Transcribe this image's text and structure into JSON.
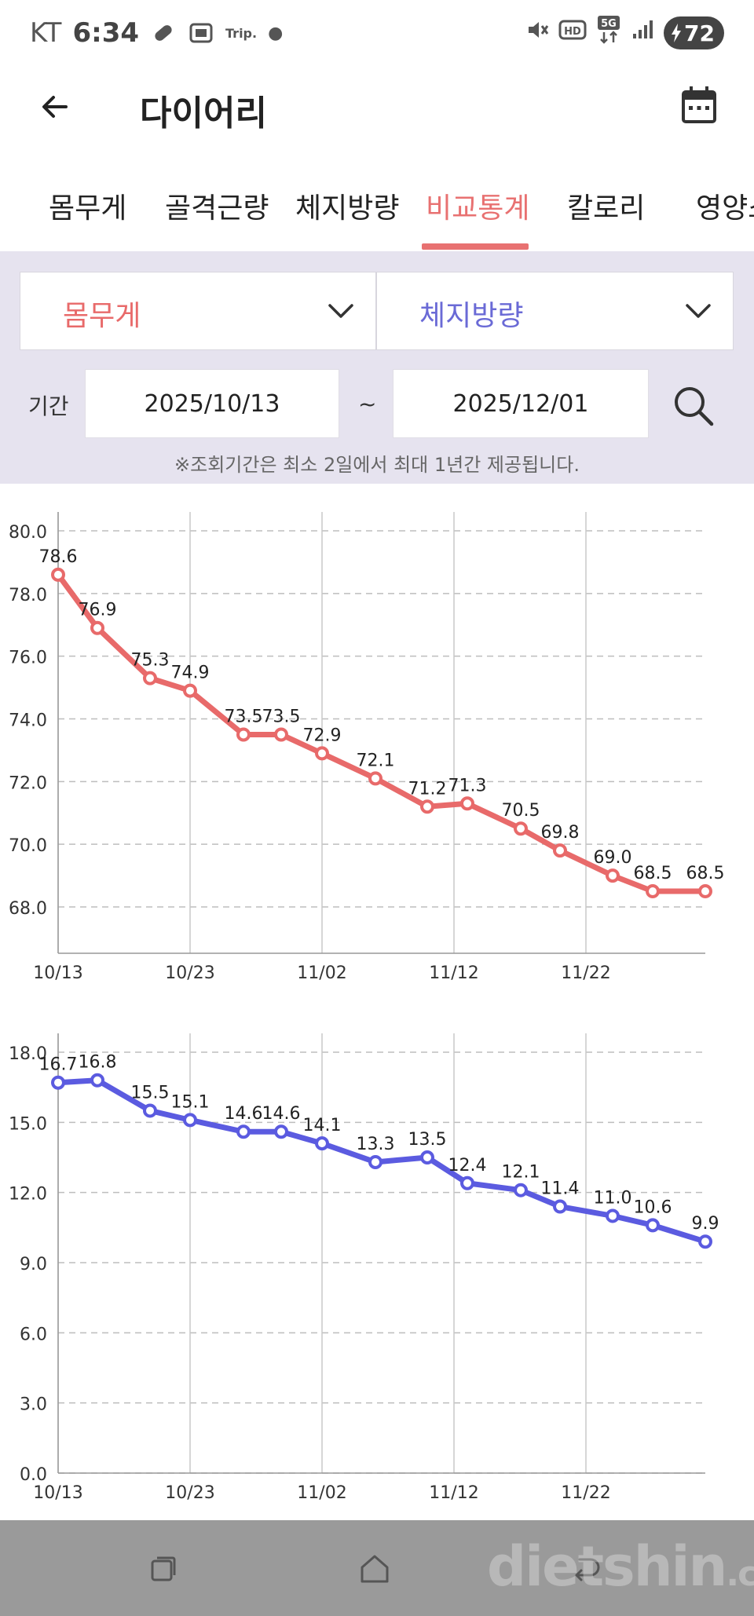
{
  "status_bar": {
    "carrier": "KT",
    "time": "6:34",
    "trip_label": "Trip.",
    "network_label": "5G",
    "hd_label": "HD",
    "battery": "72",
    "icons": [
      "pill-icon",
      "image-cast-icon",
      "trip-icon",
      "dot-icon",
      "mute-icon",
      "hd-icon",
      "5g-data-icon",
      "signal-icon",
      "battery-charging-icon"
    ]
  },
  "header": {
    "title": "다이어리",
    "back_icon": "arrow-left-icon",
    "calendar_icon": "calendar-icon"
  },
  "tabs": [
    {
      "label": "몸무게",
      "active": false
    },
    {
      "label": "골격근량",
      "active": false
    },
    {
      "label": "체지방량",
      "active": false
    },
    {
      "label": "비교통계",
      "active": true
    },
    {
      "label": "칼로리",
      "active": false
    },
    {
      "label": "영양소",
      "active": false
    }
  ],
  "filter": {
    "primary_select": {
      "value": "몸무게"
    },
    "secondary_select": {
      "value": "체지방량"
    },
    "period_label": "기간",
    "start_date": "2025/10/13",
    "separator": "~",
    "end_date": "2025/12/01",
    "notice": "※조회기간은 최소 2일에서 최대 1년간 제공됩니다."
  },
  "colors": {
    "accent_red": "#e86a6a",
    "accent_blue": "#5b5be0",
    "tab_active": "#e87171",
    "panel_bg": "#e6e3ef"
  },
  "chart_data": [
    {
      "type": "line",
      "series_color": "#e86a6a",
      "x": [
        "10/13",
        "10/16",
        "10/20",
        "10/23",
        "10/27",
        "10/30",
        "11/02",
        "11/06",
        "11/10",
        "11/13",
        "11/18",
        "11/21",
        "11/25",
        "11/28",
        "12/01"
      ],
      "values": [
        78.6,
        76.9,
        75.3,
        74.9,
        73.5,
        73.5,
        72.9,
        72.1,
        71.2,
        71.3,
        70.5,
        69.8,
        69.0,
        68.5,
        68.5
      ],
      "labels": [
        "78.6",
        "76.9",
        "75.3",
        "74.9",
        "73.5",
        "73.5",
        "72.9",
        "72.1",
        "71.2",
        "71.3",
        "70.5",
        "69.8",
        "69.0",
        "68.5",
        "68.5"
      ],
      "y_ticks": [
        "80.0",
        "78.0",
        "76.0",
        "74.0",
        "72.0",
        "70.0",
        "68.0"
      ],
      "x_ticks": [
        "10/13",
        "10/23",
        "11/02",
        "11/12",
        "11/22"
      ],
      "ylim": [
        66.5,
        80.5
      ],
      "grid": true
    },
    {
      "type": "line",
      "series_color": "#5b5be0",
      "x": [
        "10/13",
        "10/16",
        "10/20",
        "10/23",
        "10/27",
        "10/30",
        "11/02",
        "11/06",
        "11/10",
        "11/13",
        "11/18",
        "11/21",
        "11/25",
        "11/28",
        "12/01"
      ],
      "values": [
        16.7,
        16.8,
        15.5,
        15.1,
        14.6,
        14.6,
        14.1,
        13.3,
        13.5,
        12.4,
        12.1,
        11.4,
        11.0,
        10.6,
        9.9
      ],
      "labels": [
        "16.7",
        "16.8",
        "15.5",
        "15.1",
        "14.6",
        "14.6",
        "14.1",
        "13.3",
        "13.5",
        "12.4",
        "12.1",
        "11.4",
        "11.0",
        "10.6",
        "9.9"
      ],
      "y_ticks": [
        "18.0",
        "15.0",
        "12.0",
        "9.0",
        "6.0",
        "3.0",
        "0.0"
      ],
      "x_ticks": [
        "10/13",
        "10/23",
        "11/02",
        "11/12",
        "11/22"
      ],
      "ylim": [
        0,
        18
      ],
      "grid": true
    }
  ],
  "nav_bar": {
    "icons": [
      "recent-apps-icon",
      "home-icon",
      "back-icon"
    ]
  },
  "watermark": {
    "text": "dietshin",
    "suffix": ".com"
  }
}
